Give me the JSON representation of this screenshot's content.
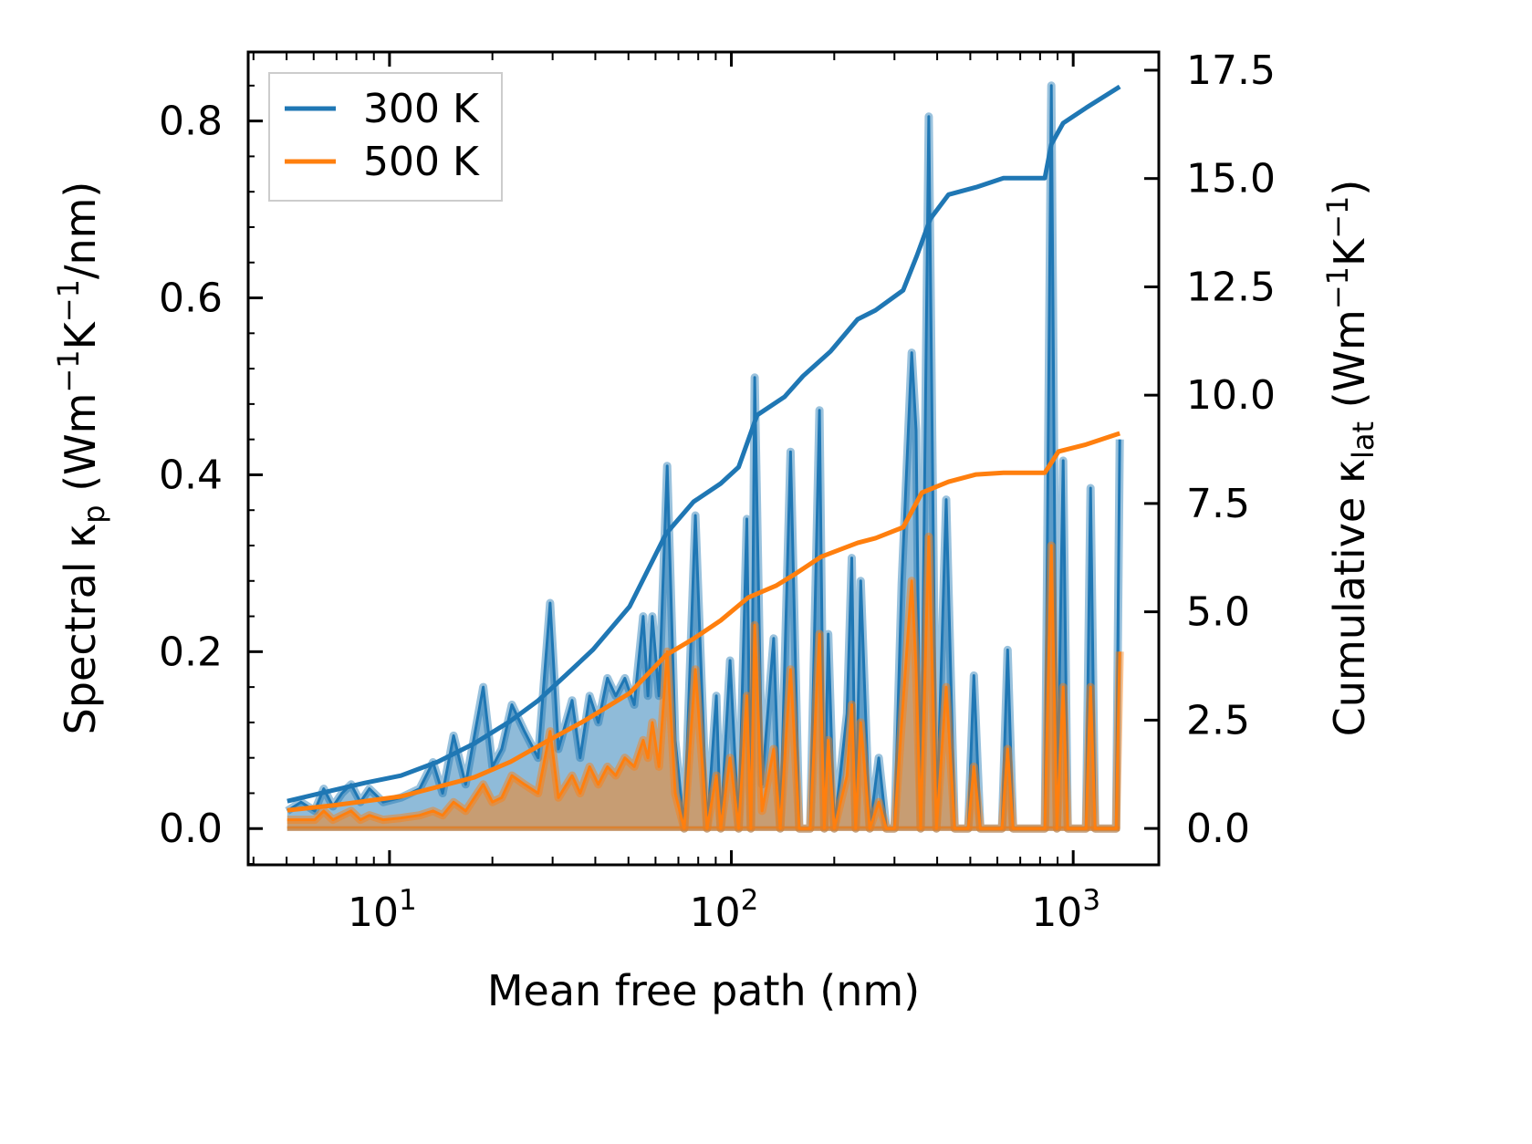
{
  "chart_data": {
    "type": "line",
    "xlabel": "Mean free path (nm)",
    "xscale": "log",
    "xlim": [
      3.86,
      1780
    ],
    "xticks": [
      {
        "base": "10",
        "exp": "1",
        "value": 10
      },
      {
        "base": "10",
        "exp": "2",
        "value": 100
      },
      {
        "base": "10",
        "exp": "3",
        "value": 1000
      }
    ],
    "ylabel_left": {
      "pre": "Spectral κ",
      "sub": "p",
      "mid": " (Wm",
      "sup1": "−1",
      "k": "K",
      "sup2": "−1",
      "post": "/nm)"
    },
    "ylabel_right": {
      "pre": "Cumulative κ",
      "sub": "lat",
      "mid": " (Wm",
      "sup1": "−1",
      "k": "K",
      "sup2": "−1",
      "post": ")"
    },
    "ylim_left": [
      -0.041,
      0.878
    ],
    "ylim_right": [
      -0.84,
      17.92
    ],
    "yticks_left": [
      "0.0",
      "0.2",
      "0.4",
      "0.6",
      "0.8"
    ],
    "yticks_right": [
      "0.0",
      "2.5",
      "5.0",
      "7.5",
      "10.0",
      "12.5",
      "15.0",
      "17.5"
    ],
    "legend": {
      "placement": "top-left",
      "entries": [
        {
          "label": "300 K",
          "color": "#1f77b4"
        },
        {
          "label": "500 K",
          "color": "#ff7f0e"
        }
      ]
    },
    "spectral": {
      "x": [
        5.02,
        5.51,
        6.04,
        6.42,
        6.83,
        7.26,
        7.72,
        8.22,
        8.73,
        9.58,
        10.8,
        12.25,
        13.4,
        14.3,
        15.4,
        16.7,
        18.8,
        20.0,
        21.3,
        22.8,
        24.8,
        27.2,
        29.5,
        31.2,
        34.2,
        36.1,
        38.5,
        40.8,
        43.4,
        45.9,
        48.8,
        52.0,
        55.2,
        57.0,
        58.7,
        61.4,
        64.9,
        68.5,
        72.8,
        78.5,
        84.9,
        90.4,
        93.1,
        99.1,
        105,
        111,
        114,
        117,
        123,
        133,
        139,
        149,
        158,
        170,
        181,
        187,
        192,
        200,
        218,
        225,
        231,
        239,
        254,
        270,
        284,
        300,
        315,
        337,
        347,
        358,
        378,
        398,
        425,
        450,
        493,
        512,
        535,
        619,
        643,
        667,
        826,
        863,
        896,
        935,
        964,
        1090,
        1124,
        1159,
        1335,
        1368
      ],
      "series": [
        {
          "name": "300 K",
          "color": "#1f77b4",
          "values": [
            0.02,
            0.03,
            0.02,
            0.045,
            0.025,
            0.04,
            0.05,
            0.03,
            0.045,
            0.03,
            0.035,
            0.045,
            0.075,
            0.04,
            0.105,
            0.05,
            0.16,
            0.07,
            0.09,
            0.14,
            0.11,
            0.08,
            0.255,
            0.09,
            0.145,
            0.08,
            0.15,
            0.12,
            0.17,
            0.15,
            0.17,
            0.14,
            0.24,
            0.15,
            0.24,
            0.15,
            0.41,
            0.1,
            0.0,
            0.354,
            0.0,
            0.15,
            0.0,
            0.19,
            0.0,
            0.35,
            0.0,
            0.51,
            0.05,
            0.215,
            0.0,
            0.426,
            0.0,
            0.0,
            0.473,
            0.0,
            0.22,
            0.0,
            0.13,
            0.306,
            0.0,
            0.28,
            0.0,
            0.08,
            0.0,
            0.0,
            0.277,
            0.538,
            0.45,
            0.0,
            0.805,
            0.0,
            0.372,
            0.0,
            0.0,
            0.173,
            0.0,
            0.0,
            0.202,
            0.0,
            0.0,
            0.84,
            0.0,
            0.416,
            0.0,
            0.0,
            0.385,
            0.0,
            0.0,
            0.44
          ]
        },
        {
          "name": "500 K",
          "color": "#ff7f0e",
          "values": [
            0.01,
            0.01,
            0.01,
            0.02,
            0.01,
            0.015,
            0.02,
            0.01,
            0.015,
            0.01,
            0.012,
            0.015,
            0.02,
            0.015,
            0.03,
            0.02,
            0.05,
            0.03,
            0.035,
            0.06,
            0.05,
            0.04,
            0.11,
            0.035,
            0.06,
            0.04,
            0.07,
            0.05,
            0.07,
            0.06,
            0.08,
            0.07,
            0.1,
            0.08,
            0.12,
            0.07,
            0.2,
            0.04,
            0.0,
            0.18,
            0.0,
            0.06,
            0.0,
            0.08,
            0.0,
            0.15,
            0.0,
            0.23,
            0.02,
            0.09,
            0.0,
            0.18,
            0.0,
            0.0,
            0.22,
            0.0,
            0.1,
            0.0,
            0.06,
            0.14,
            0.0,
            0.12,
            0.0,
            0.03,
            0.0,
            0.0,
            0.12,
            0.28,
            0.18,
            0.0,
            0.33,
            0.0,
            0.16,
            0.0,
            0.0,
            0.07,
            0.0,
            0.0,
            0.09,
            0.0,
            0.0,
            0.32,
            0.0,
            0.16,
            0.0,
            0.0,
            0.16,
            0.0,
            0.0,
            0.2
          ]
        }
      ]
    },
    "cumulative": [
      {
        "name": "300 K",
        "color": "#1f77b4",
        "x": [
          5.02,
          6.83,
          8.47,
          10.8,
          13.85,
          17.7,
          22.6,
          27.2,
          32.8,
          39.4,
          50.4,
          64.4,
          77.5,
          93.1,
          105,
          119,
          143,
          162,
          195,
          234,
          264,
          318,
          349,
          382,
          432,
          520,
          625,
          826,
          863,
          935,
          1090,
          1368
        ],
        "values": [
          0.63,
          0.88,
          1.05,
          1.22,
          1.54,
          1.96,
          2.48,
          2.95,
          3.54,
          4.13,
          5.12,
          6.8,
          7.54,
          7.96,
          8.34,
          9.54,
          9.96,
          10.44,
          11.01,
          11.75,
          11.96,
          12.42,
          13.22,
          14.07,
          14.63,
          14.8,
          15.01,
          15.01,
          15.79,
          16.28,
          16.63,
          17.12
        ]
      },
      {
        "name": "500 K",
        "color": "#ff7f0e",
        "x": [
          5.02,
          6.83,
          10.8,
          17.7,
          22.6,
          29.0,
          37.1,
          50.4,
          64.4,
          77.5,
          93.1,
          112,
          135,
          152,
          183,
          234,
          264,
          318,
          361,
          432,
          520,
          625,
          826,
          906,
          1090,
          1368
        ],
        "values": [
          0.42,
          0.53,
          0.74,
          1.18,
          1.54,
          2.02,
          2.48,
          3.12,
          4.0,
          4.38,
          4.8,
          5.33,
          5.6,
          5.85,
          6.27,
          6.59,
          6.7,
          6.95,
          7.75,
          8.0,
          8.17,
          8.21,
          8.21,
          8.7,
          8.86,
          9.12
        ]
      }
    ]
  }
}
